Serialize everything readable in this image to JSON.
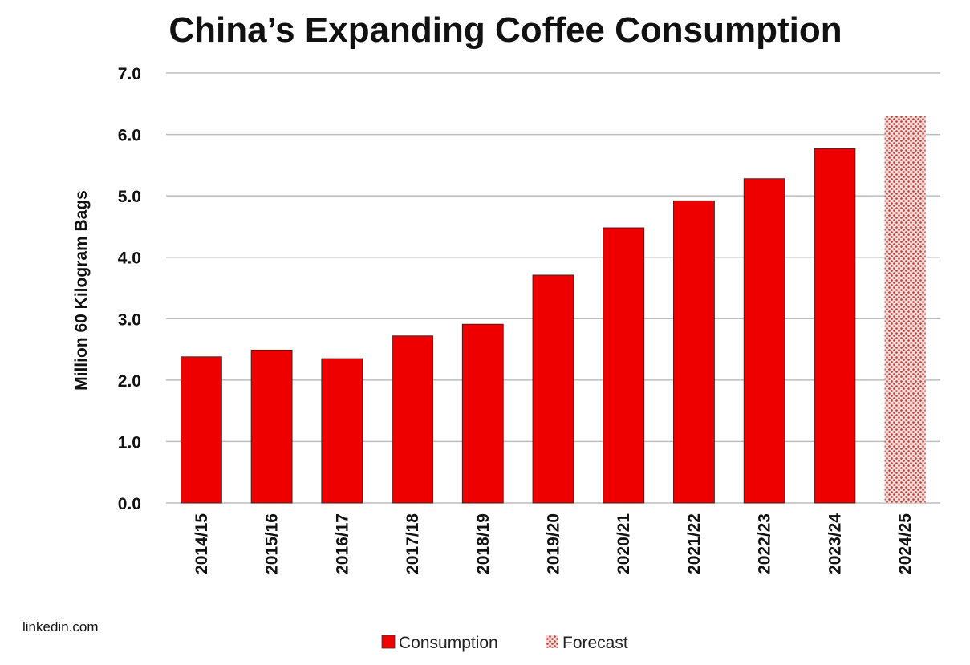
{
  "source_label": "linkedin.com",
  "chart_data": {
    "type": "bar",
    "title": "China’s Expanding Coffee Consumption",
    "xlabel": "",
    "ylabel": "Million 60 Kilogram Bags",
    "ylim": [
      0,
      7
    ],
    "yticks": [
      "0.0",
      "1.0",
      "2.0",
      "3.0",
      "4.0",
      "5.0",
      "6.0",
      "7.0"
    ],
    "grid": true,
    "legend_position": "bottom-center",
    "categories": [
      "2014/15",
      "2015/16",
      "2016/17",
      "2017/18",
      "2018/19",
      "2019/20",
      "2020/21",
      "2021/22",
      "2022/23",
      "2023/24",
      "2024/25"
    ],
    "series": [
      {
        "name": "Consumption",
        "color": "#ee0000",
        "values": [
          2.38,
          2.49,
          2.35,
          2.72,
          2.91,
          3.71,
          4.48,
          4.92,
          5.28,
          5.77,
          null
        ]
      },
      {
        "name": "Forecast",
        "color": "#d9a0a0",
        "values": [
          null,
          null,
          null,
          null,
          null,
          null,
          null,
          null,
          null,
          null,
          6.3
        ]
      }
    ]
  }
}
